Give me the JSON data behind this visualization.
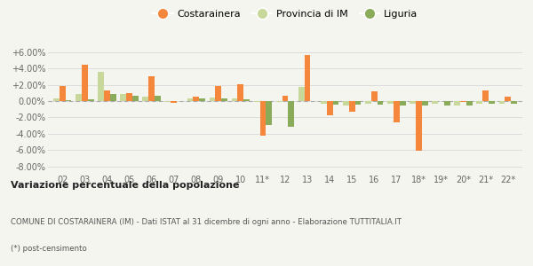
{
  "categories": [
    "02",
    "03",
    "04",
    "05",
    "06",
    "07",
    "08",
    "09",
    "10",
    "11*",
    "12",
    "13",
    "14",
    "15",
    "16",
    "17",
    "18*",
    "19*",
    "20*",
    "21*",
    "22*"
  ],
  "costarainera": [
    1.8,
    4.5,
    1.3,
    1.0,
    3.0,
    -0.2,
    0.5,
    1.8,
    2.1,
    -4.2,
    0.6,
    5.6,
    -1.7,
    -1.3,
    1.2,
    -2.6,
    -6.1,
    0.0,
    -0.1,
    1.3,
    0.5
  ],
  "provincia": [
    0.3,
    0.9,
    3.6,
    0.9,
    0.55,
    -0.1,
    0.35,
    0.4,
    0.3,
    -0.15,
    -0.1,
    1.7,
    -0.3,
    -0.5,
    -0.3,
    -0.35,
    -0.3,
    -0.35,
    -0.5,
    -0.3,
    -0.3
  ],
  "liguria": [
    0.1,
    0.2,
    0.85,
    0.7,
    0.7,
    0.0,
    0.3,
    0.35,
    0.2,
    -2.9,
    -3.1,
    0.0,
    -0.4,
    -0.4,
    -0.4,
    -0.5,
    -0.5,
    -0.5,
    -0.5,
    -0.3,
    -0.3
  ],
  "color_costarainera": "#f4873b",
  "color_provincia": "#c8d89a",
  "color_liguria": "#8aab5a",
  "bg_color": "#f5f5f0",
  "grid_color": "#dddddd",
  "yticks": [
    -8.0,
    -6.0,
    -4.0,
    -2.0,
    0.0,
    2.0,
    4.0,
    6.0
  ],
  "ylim": [
    -8.8,
    7.5
  ],
  "title_bold": "Variazione percentuale della popolazione",
  "subtitle1": "COMUNE DI COSTARAINERA (IM) - Dati ISTAT al 31 dicembre di ogni anno - Elaborazione TUTTITALIA.IT",
  "subtitle2": "(*) post-censimento",
  "legend_labels": [
    "Costarainera",
    "Provincia di IM",
    "Liguria"
  ]
}
